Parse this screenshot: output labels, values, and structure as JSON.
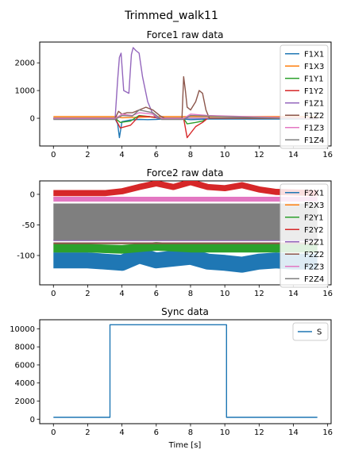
{
  "figure": {
    "title": "Trimmed_walk11"
  },
  "chart_data": [
    {
      "type": "line",
      "title": "Force1 raw data",
      "xlabel": "",
      "ylabel": "",
      "xlim": [
        -0.8,
        16.2
      ],
      "ylim": [
        -1000,
        2750
      ],
      "xticks": [
        0,
        2,
        4,
        6,
        8,
        10,
        12,
        14,
        16
      ],
      "yticks": [
        0,
        1000,
        2000
      ],
      "legend": "top-right",
      "series": [
        {
          "name": "F1X1",
          "color": "#1f77b4",
          "x": [
            0,
            3.6,
            3.75,
            3.85,
            4.0,
            4.5,
            5.0,
            5.5,
            6.0,
            6.3,
            7.6,
            8.0,
            8.5,
            9.0,
            10.0,
            15.4
          ],
          "y": [
            -30,
            -30,
            -200,
            -700,
            -120,
            -60,
            -40,
            -50,
            -40,
            -30,
            -30,
            -50,
            -40,
            -30,
            -30,
            -30
          ]
        },
        {
          "name": "F1X3",
          "color": "#ff7f0e",
          "x": [
            0,
            3.6,
            4.0,
            6.3,
            8.0,
            10.0,
            15.4
          ],
          "y": [
            60,
            60,
            20,
            60,
            60,
            60,
            60
          ]
        },
        {
          "name": "F1Y1",
          "color": "#2ca02c",
          "x": [
            0,
            3.6,
            3.9,
            4.5,
            5.0,
            5.6,
            6.2,
            7.6,
            7.8,
            8.3,
            8.7,
            9.0,
            15.4
          ],
          "y": [
            0,
            0,
            -150,
            -100,
            100,
            60,
            0,
            0,
            -200,
            -150,
            -100,
            0,
            0
          ]
        },
        {
          "name": "F1Y2",
          "color": "#d62728",
          "x": [
            0,
            3.6,
            3.9,
            4.5,
            5.0,
            5.6,
            6.2,
            7.6,
            7.8,
            8.3,
            8.7,
            9.0,
            15.4
          ],
          "y": [
            0,
            0,
            -350,
            -250,
            80,
            60,
            0,
            0,
            -700,
            -300,
            -150,
            0,
            0
          ]
        },
        {
          "name": "F1Z1",
          "color": "#9467bd",
          "x": [
            0,
            3.6,
            3.75,
            3.85,
            3.95,
            4.1,
            4.4,
            4.55,
            4.65,
            4.8,
            5.0,
            5.2,
            5.5,
            5.8,
            6.0,
            6.3,
            15.4
          ],
          "y": [
            0,
            0,
            1400,
            2200,
            2350,
            1000,
            900,
            2300,
            2550,
            2450,
            2350,
            1500,
            600,
            150,
            30,
            0,
            0
          ]
        },
        {
          "name": "F1Z2",
          "color": "#8c564b",
          "x": [
            0,
            3.6,
            3.8,
            4.0,
            4.3,
            4.6,
            5.0,
            5.4,
            5.8,
            6.2,
            6.5,
            7.5,
            7.6,
            7.7,
            7.8,
            8.0,
            8.3,
            8.5,
            8.7,
            8.9,
            9.1,
            15.4
          ],
          "y": [
            0,
            0,
            250,
            150,
            200,
            200,
            300,
            400,
            300,
            100,
            0,
            0,
            1500,
            1000,
            400,
            300,
            600,
            1000,
            900,
            300,
            0,
            0
          ]
        },
        {
          "name": "F1Z3",
          "color": "#e377c2",
          "x": [
            0,
            3.6,
            4.0,
            4.6,
            5.0,
            5.8,
            6.3,
            7.6,
            8.0,
            9.0,
            15.4
          ],
          "y": [
            -10,
            -10,
            150,
            100,
            200,
            150,
            -10,
            -10,
            150,
            100,
            -10
          ]
        },
        {
          "name": "F1Z4",
          "color": "#7f7f7f",
          "x": [
            0,
            3.6,
            4.0,
            4.6,
            5.0,
            5.8,
            6.3,
            7.6,
            8.0,
            9.0,
            15.4
          ],
          "y": [
            -40,
            -40,
            100,
            80,
            300,
            200,
            -40,
            -40,
            100,
            80,
            -40
          ]
        }
      ]
    },
    {
      "type": "line",
      "title": "Force2 raw data",
      "xlabel": "",
      "ylabel": "",
      "xlim": [
        -0.8,
        16.2
      ],
      "ylim": [
        -148,
        22
      ],
      "xticks": [
        0,
        2,
        4,
        6,
        8,
        10,
        12,
        14,
        16
      ],
      "yticks": [
        0,
        -50,
        -100
      ],
      "legend": "top-right",
      "series": [
        {
          "name": "F2X1",
          "color": "#1f77b4",
          "x": [
            0,
            2,
            4,
            5,
            6,
            7,
            8,
            9,
            10,
            11,
            12,
            13,
            14,
            15.4
          ],
          "y": [
            -108,
            -108,
            -112,
            -100,
            -108,
            -105,
            -102,
            -110,
            -112,
            -115,
            -110,
            -108,
            -110,
            -110
          ]
        },
        {
          "name": "F2X3",
          "color": "#ff7f0e",
          "x": [
            0,
            15.4
          ],
          "y": [
            -6,
            -6
          ]
        },
        {
          "name": "F2Y1",
          "color": "#2ca02c",
          "x": [
            0,
            2,
            4,
            6,
            8,
            10,
            12,
            14,
            15.4
          ],
          "y": [
            -88,
            -88,
            -90,
            -85,
            -88,
            -88,
            -88,
            -88,
            -88
          ]
        },
        {
          "name": "F2Y2",
          "color": "#d62728",
          "x": [
            0,
            3,
            4,
            5,
            6,
            7,
            8,
            9,
            10,
            11,
            12,
            13,
            15.4
          ],
          "y": [
            2,
            2,
            5,
            12,
            18,
            12,
            20,
            12,
            10,
            15,
            8,
            4,
            2
          ]
        },
        {
          "name": "F2Z1",
          "color": "#9467bd",
          "x": [
            0,
            15.4
          ],
          "y": [
            -75,
            -75
          ]
        },
        {
          "name": "F2Z2",
          "color": "#8c564b",
          "x": [
            0,
            15.4
          ],
          "y": [
            -80,
            -80
          ]
        },
        {
          "name": "F2Z3",
          "color": "#e377c2",
          "x": [
            0,
            15.4
          ],
          "y": [
            -8,
            -8
          ]
        },
        {
          "name": "F2Z4",
          "color": "#7f7f7f",
          "x": [
            0,
            15.4
          ],
          "y": [
            -45,
            -45
          ]
        }
      ]
    },
    {
      "type": "line",
      "title": "Sync data",
      "xlabel": "Time [s]",
      "ylabel": "",
      "xlim": [
        -0.8,
        16.2
      ],
      "ylim": [
        -500,
        11000
      ],
      "xticks": [
        0,
        2,
        4,
        6,
        8,
        10,
        12,
        14,
        16
      ],
      "yticks": [
        0,
        2000,
        4000,
        6000,
        8000,
        10000
      ],
      "legend": "top-right",
      "series": [
        {
          "name": "S",
          "color": "#1f77b4",
          "x": [
            0,
            3.3,
            3.3,
            10.1,
            10.1,
            15.4
          ],
          "y": [
            200,
            200,
            10450,
            10450,
            200,
            200
          ]
        }
      ]
    }
  ]
}
